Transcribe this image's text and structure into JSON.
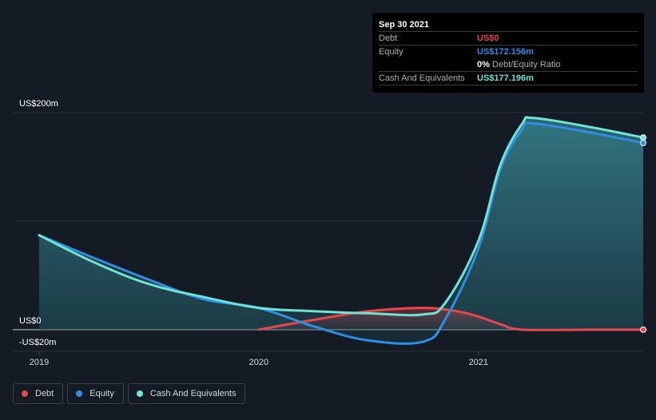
{
  "tooltip": {
    "date": "Sep 30 2021",
    "rows": [
      {
        "label": "Debt",
        "value": "US$0",
        "color": "#e5484d"
      },
      {
        "label": "Equity",
        "value": "US$172.156m",
        "color": "#2e8ee0"
      },
      {
        "ratio_value": "0%",
        "ratio_label": "Debt/Equity Ratio"
      },
      {
        "label": "Cash And Equivalents",
        "value": "US$177.196m",
        "color": "#6fe3d5"
      }
    ]
  },
  "legend": [
    {
      "label": "Debt",
      "color": "#e5484d"
    },
    {
      "label": "Equity",
      "color": "#2e8ee0"
    },
    {
      "label": "Cash And Equivalents",
      "color": "#6fe3d5"
    }
  ],
  "chart_data": {
    "type": "area",
    "y_tick_labels": [
      {
        "value": 200,
        "label": "US$200m"
      },
      {
        "value": 0,
        "label": "US$0"
      },
      {
        "value": -20,
        "label": "-US$20m"
      }
    ],
    "x_tick_labels": [
      {
        "value": 2019.0,
        "label": "2019"
      },
      {
        "value": 2020.0,
        "label": "2020"
      },
      {
        "value": 2021.0,
        "label": "2021"
      }
    ],
    "ylim": [
      -20,
      200
    ],
    "xlim": [
      2018.88,
      2021.75
    ],
    "grid": true,
    "legend_position": "bottom-left",
    "series": [
      {
        "name": "Debt",
        "color": "#e5484d",
        "x": [
          2020.0,
          2020.25,
          2020.5,
          2020.75,
          2020.9,
          2021.0,
          2021.1,
          2021.2,
          2021.5,
          2021.75
        ],
        "y": [
          0,
          9,
          17,
          20,
          17,
          12,
          5,
          0,
          0,
          0
        ]
      },
      {
        "name": "Equity",
        "color": "#2e8ee0",
        "x": [
          2019.0,
          2019.25,
          2019.5,
          2019.75,
          2020.0,
          2020.25,
          2020.5,
          2020.75,
          2020.85,
          2021.0,
          2021.1,
          2021.2,
          2021.25,
          2021.5,
          2021.75
        ],
        "y": [
          87,
          66,
          46,
          28,
          20,
          3,
          -10,
          -11,
          10,
          75,
          148,
          185,
          190,
          182,
          172
        ],
        "area": true
      },
      {
        "name": "Cash And Equivalents",
        "color": "#6fe3d5",
        "x": [
          2019.0,
          2019.25,
          2019.5,
          2019.75,
          2020.0,
          2020.25,
          2020.5,
          2020.75,
          2020.85,
          2021.0,
          2021.1,
          2021.2,
          2021.25,
          2021.5,
          2021.75
        ],
        "y": [
          87,
          62,
          42,
          30,
          20,
          17,
          15,
          14,
          25,
          82,
          152,
          190,
          195,
          187,
          177
        ],
        "area": true
      }
    ]
  }
}
